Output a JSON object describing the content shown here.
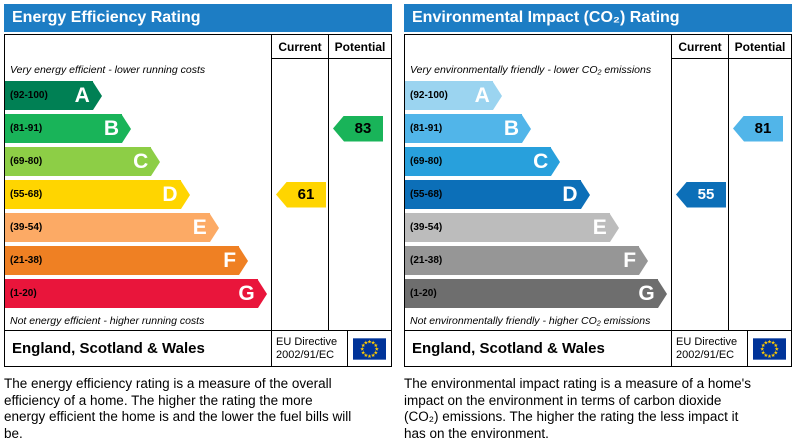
{
  "colors": {
    "header_bg": "#1d7dc4",
    "header_text": "#ffffff",
    "border": "#000000",
    "flag_bg": "#003399",
    "flag_stars": "#ffcc00"
  },
  "charts": [
    {
      "title": "Energy Efficiency Rating",
      "columns": [
        "Current",
        "Potential"
      ],
      "top_caption": "Very energy efficient - lower running costs",
      "bottom_caption": "Not energy efficient - higher running costs",
      "bands": [
        {
          "letter": "A",
          "range": "(92-100)",
          "color": "#008054"
        },
        {
          "letter": "B",
          "range": "(81-91)",
          "color": "#19b459"
        },
        {
          "letter": "C",
          "range": "(69-80)",
          "color": "#8dce46"
        },
        {
          "letter": "D",
          "range": "(55-68)",
          "color": "#ffd500"
        },
        {
          "letter": "E",
          "range": "(39-54)",
          "color": "#fcaa65"
        },
        {
          "letter": "F",
          "range": "(21-38)",
          "color": "#ef8023"
        },
        {
          "letter": "G",
          "range": "(1-20)",
          "color": "#e9153b"
        }
      ],
      "arrows": [
        {
          "column": "current",
          "value": "61",
          "band": "D",
          "color": "#ffd500",
          "text_color": "#000000"
        },
        {
          "column": "potential",
          "value": "83",
          "band": "B",
          "color": "#19b459",
          "text_color": "#000000"
        }
      ],
      "footer": {
        "region": "England, Scotland & Wales",
        "directive_line1": "EU Directive",
        "directive_line2": "2002/91/EC"
      },
      "description": "The energy efficiency rating is a measure of the overall efficiency of a home. The higher the rating the more energy efficient the home is and the lower the fuel bills will be."
    },
    {
      "title": "Environmental Impact (CO₂) Rating",
      "columns": [
        "Current",
        "Potential"
      ],
      "top_caption": "Very environmentally friendly - lower CO₂ emissions",
      "bottom_caption": "Not environmentally friendly - higher CO₂ emissions",
      "bands": [
        {
          "letter": "A",
          "range": "(92-100)",
          "color": "#9bd4f0"
        },
        {
          "letter": "B",
          "range": "(81-91)",
          "color": "#51b5e9"
        },
        {
          "letter": "C",
          "range": "(69-80)",
          "color": "#28a0dc"
        },
        {
          "letter": "D",
          "range": "(55-68)",
          "color": "#0c6fb8"
        },
        {
          "letter": "E",
          "range": "(39-54)",
          "color": "#bcbcbc"
        },
        {
          "letter": "F",
          "range": "(21-38)",
          "color": "#969696"
        },
        {
          "letter": "G",
          "range": "(1-20)",
          "color": "#6e6e6e"
        }
      ],
      "arrows": [
        {
          "column": "current",
          "value": "55",
          "band": "D",
          "color": "#0c6fb8",
          "text_color": "#ffffff"
        },
        {
          "column": "potential",
          "value": "81",
          "band": "B",
          "color": "#51b5e9",
          "text_color": "#000000"
        }
      ],
      "footer": {
        "region": "England, Scotland & Wales",
        "directive_line1": "EU Directive",
        "directive_line2": "2002/91/EC"
      },
      "description": "The environmental impact rating is a measure of a home's impact on the environment in terms of carbon dioxide (CO₂) emissions. The higher the rating the less impact it has on the environment."
    }
  ],
  "chart_data": [
    {
      "type": "bar",
      "title": "Energy Efficiency Rating",
      "categories": [
        "A",
        "B",
        "C",
        "D",
        "E",
        "F",
        "G"
      ],
      "band_ranges": [
        "92-100",
        "81-91",
        "69-80",
        "55-68",
        "39-54",
        "21-38",
        "1-20"
      ],
      "series": [
        {
          "name": "Current",
          "value": 61,
          "band": "D"
        },
        {
          "name": "Potential",
          "value": 83,
          "band": "B"
        }
      ],
      "scale": [
        1,
        100
      ],
      "top_label": "Very energy efficient - lower running costs",
      "bottom_label": "Not energy efficient - higher running costs"
    },
    {
      "type": "bar",
      "title": "Environmental Impact (CO₂) Rating",
      "categories": [
        "A",
        "B",
        "C",
        "D",
        "E",
        "F",
        "G"
      ],
      "band_ranges": [
        "92-100",
        "81-91",
        "69-80",
        "55-68",
        "39-54",
        "21-38",
        "1-20"
      ],
      "series": [
        {
          "name": "Current",
          "value": 55,
          "band": "D"
        },
        {
          "name": "Potential",
          "value": 81,
          "band": "B"
        }
      ],
      "scale": [
        1,
        100
      ],
      "top_label": "Very environmentally friendly - lower CO₂ emissions",
      "bottom_label": "Not environmentally friendly - higher CO₂ emissions"
    }
  ]
}
